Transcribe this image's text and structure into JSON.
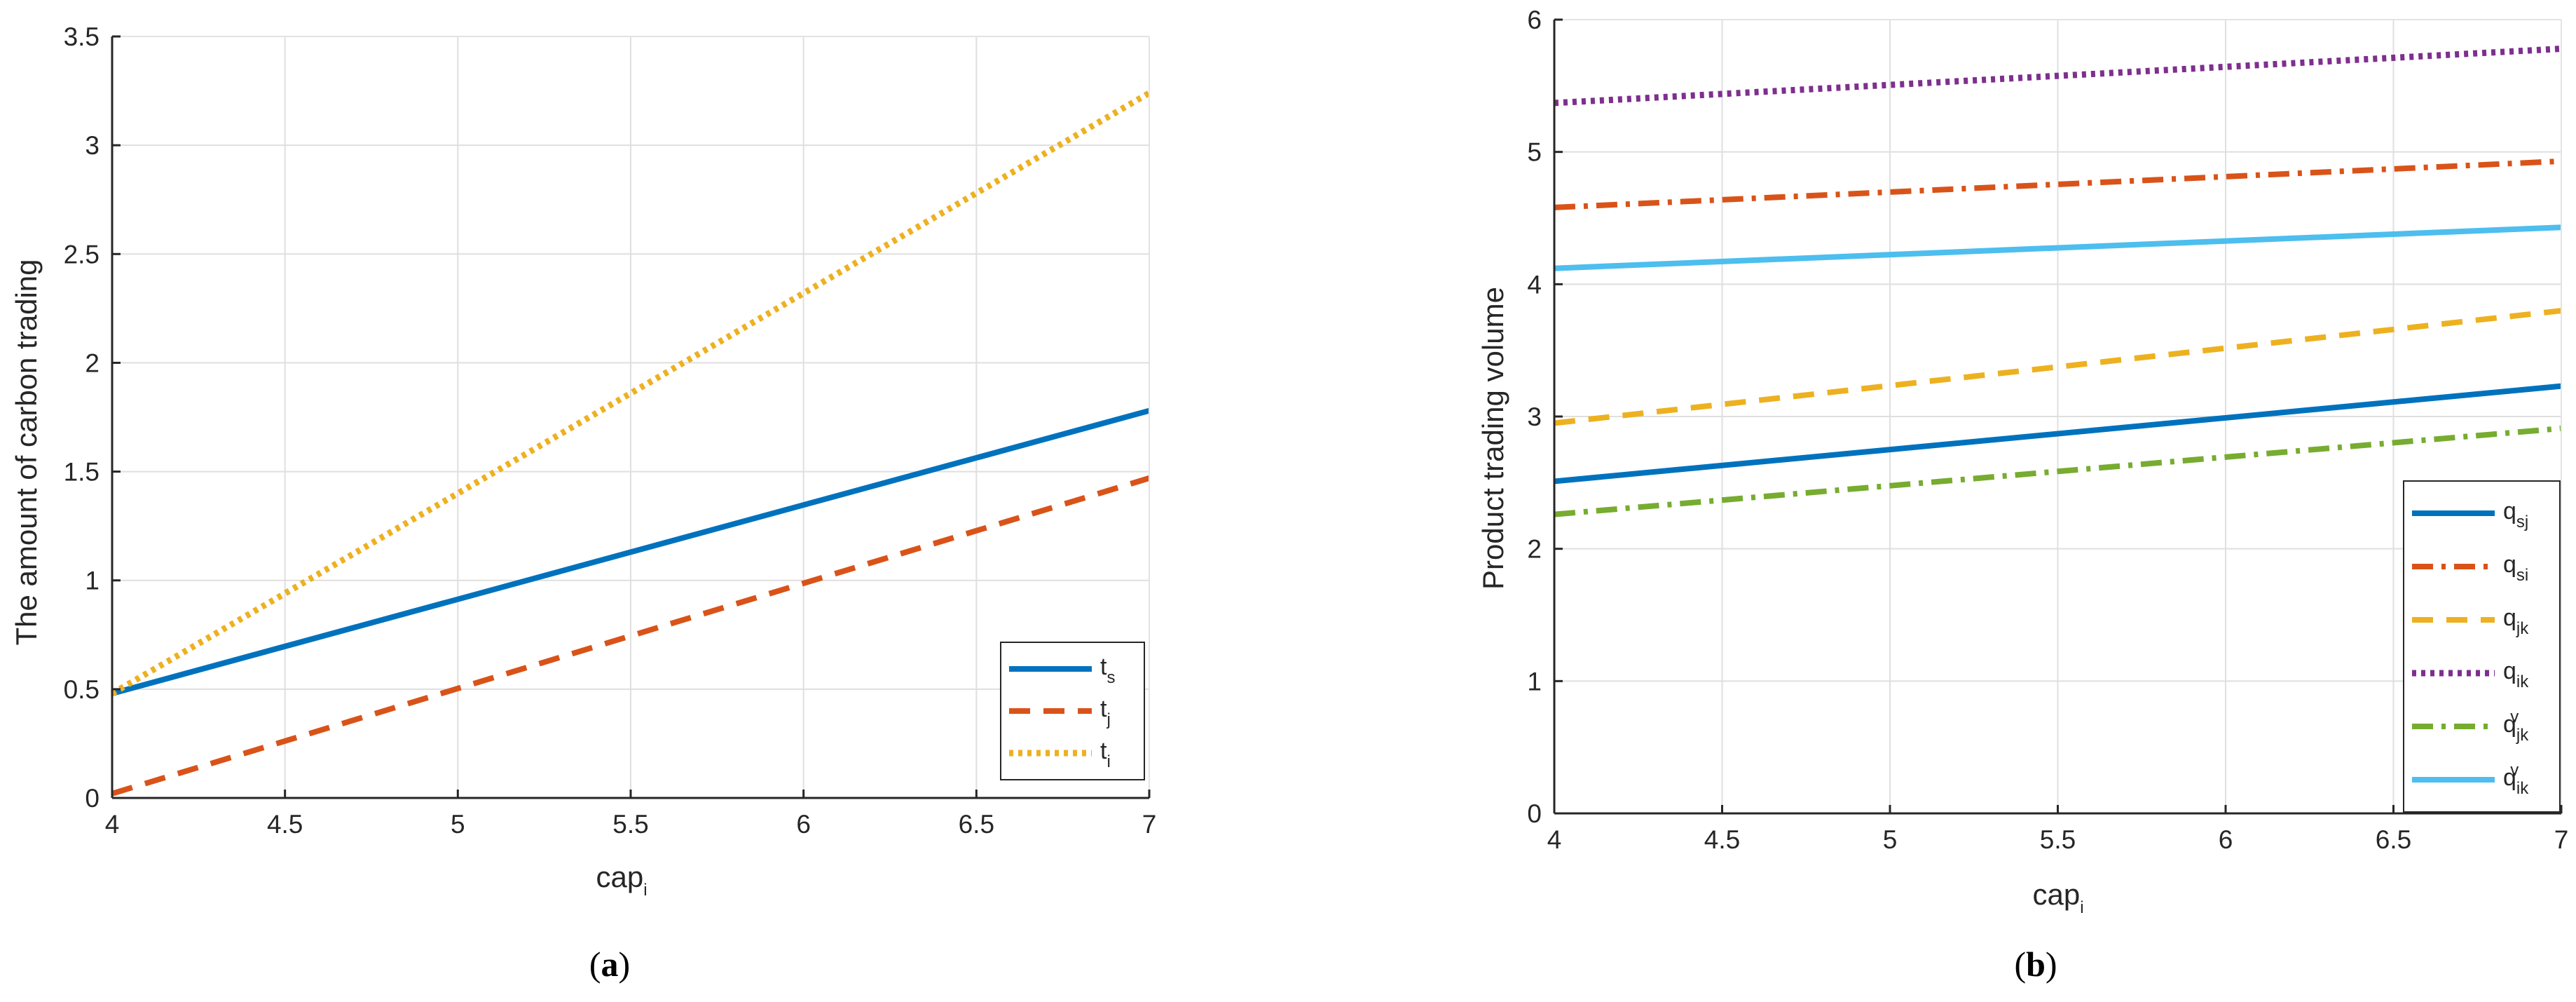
{
  "chart_data": [
    {
      "id": "a",
      "type": "line",
      "caption_letter": "a",
      "caption_open": "(",
      "caption_close": ")",
      "xlabel": "cap",
      "xlabel_sub": "i",
      "ylabel": "The amount of carbon trading",
      "xlim": [
        4,
        7
      ],
      "ylim": [
        0,
        3.5
      ],
      "xticks": [
        4,
        4.5,
        5,
        5.5,
        6,
        6.5,
        7
      ],
      "yticks": [
        0,
        0.5,
        1,
        1.5,
        2,
        2.5,
        3,
        3.5
      ],
      "grid": true,
      "legend_position": "bottom-right",
      "series": [
        {
          "name": "t",
          "sub": "s",
          "sup": "",
          "color": "#0072BD",
          "dash": "solid",
          "x": [
            4,
            7
          ],
          "y": [
            0.48,
            1.78
          ]
        },
        {
          "name": "t",
          "sub": "j",
          "sup": "",
          "color": "#D95319",
          "dash": "dash",
          "x": [
            4,
            7
          ],
          "y": [
            0.02,
            1.47
          ]
        },
        {
          "name": "t",
          "sub": "i",
          "sup": "",
          "color": "#EDB120",
          "dash": "dot",
          "x": [
            4,
            7
          ],
          "y": [
            0.48,
            3.24
          ]
        }
      ]
    },
    {
      "id": "b",
      "type": "line",
      "caption_letter": "b",
      "caption_open": "(",
      "caption_close": ")",
      "xlabel": "cap",
      "xlabel_sub": "i",
      "ylabel": "Product trading volume",
      "xlim": [
        4,
        7
      ],
      "ylim": [
        0,
        6
      ],
      "xticks": [
        4,
        4.5,
        5,
        5.5,
        6,
        6.5,
        7
      ],
      "yticks": [
        0,
        1,
        2,
        3,
        4,
        5,
        6
      ],
      "grid": true,
      "legend_position": "bottom-right",
      "series": [
        {
          "name": "q",
          "sub": "sj",
          "sup": "",
          "color": "#0072BD",
          "dash": "solid",
          "x": [
            4,
            7
          ],
          "y": [
            2.51,
            3.23
          ]
        },
        {
          "name": "q",
          "sub": "si",
          "sup": "",
          "color": "#D95319",
          "dash": "dashdot",
          "x": [
            4,
            7
          ],
          "y": [
            4.58,
            4.93
          ]
        },
        {
          "name": "q",
          "sub": "jk",
          "sup": "",
          "color": "#EDB120",
          "dash": "dash",
          "x": [
            4,
            7
          ],
          "y": [
            2.95,
            3.8
          ]
        },
        {
          "name": "q",
          "sub": "ik",
          "sup": "",
          "color": "#7E2F8E",
          "dash": "dot",
          "x": [
            4,
            7
          ],
          "y": [
            5.37,
            5.78
          ]
        },
        {
          "name": "q",
          "sub": "jk",
          "sup": "v",
          "color": "#77AC30",
          "dash": "dashdot",
          "x": [
            4,
            7
          ],
          "y": [
            2.26,
            2.91
          ]
        },
        {
          "name": "q",
          "sub": "ik",
          "sup": "v",
          "color": "#4DBEEE",
          "dash": "solid",
          "x": [
            4,
            7
          ],
          "y": [
            4.12,
            4.43
          ]
        }
      ]
    }
  ]
}
